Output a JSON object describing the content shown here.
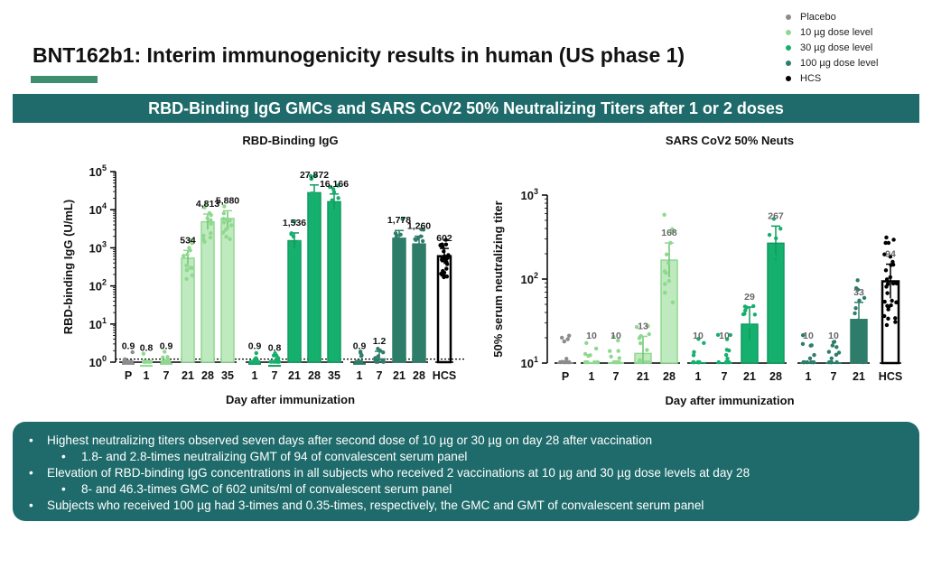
{
  "slide": {
    "title": "BNT162b1:  Interim immunogenicity results in human (US phase 1)",
    "banner": "RBD-Binding IgG GMCs and SARS CoV2 50% Neutralizing Titers after 1 or 2 doses"
  },
  "legend": [
    {
      "label": "Placebo",
      "color": "#8c8c8c"
    },
    {
      "label": "10 µg dose level",
      "color": "#8fd88f"
    },
    {
      "label": "30 µg dose level",
      "color": "#16b06e"
    },
    {
      "label": "100 µg dose level",
      "color": "#2e7d6a"
    },
    {
      "label": "HCS",
      "color": "#000000"
    }
  ],
  "chart_data": [
    {
      "type": "bar",
      "title": "RBD-Binding IgG",
      "ylabel": "RBD-binding IgG (U/mL)",
      "xlabel": "Day after immunization",
      "yscale": "log",
      "ylim": [
        1,
        100000
      ],
      "yticks": [
        {
          "base": "10",
          "exp": "0"
        },
        {
          "base": "10",
          "exp": "1"
        },
        {
          "base": "10",
          "exp": "2"
        },
        {
          "base": "10",
          "exp": "3"
        },
        {
          "base": "10",
          "exp": "4"
        },
        {
          "base": "10",
          "exp": "5"
        }
      ],
      "categories": [
        "P",
        "1",
        "7",
        "21",
        "28",
        "35",
        "1",
        "7",
        "21",
        "28",
        "35",
        "1",
        "7",
        "21",
        "28",
        "HCS"
      ],
      "groups": [
        "Placebo",
        "10 µg",
        "10 µg",
        "10 µg",
        "10 µg",
        "10 µg",
        "30 µg",
        "30 µg",
        "30 µg",
        "30 µg",
        "30 µg",
        "100 µg",
        "100 µg",
        "100 µg",
        "100 µg",
        "HCS"
      ],
      "values": [
        0.9,
        0.8,
        0.9,
        534,
        4813,
        5880,
        0.9,
        0.8,
        1536,
        27872,
        16166,
        0.9,
        1.2,
        1778,
        1260,
        602
      ],
      "labels": [
        "0.9",
        "0.8",
        "0.9",
        "534",
        "4,813",
        "5,880",
        "0.9",
        "0.8",
        "1,536",
        "27,872",
        "16,166",
        "0.9",
        "1.2",
        "1,778",
        "1,260",
        "602"
      ],
      "lloq": 1.2
    },
    {
      "type": "bar",
      "title": "SARS CoV2 50% Neuts",
      "ylabel": "50% serum neutralizing titer",
      "xlabel": "Day after immunization",
      "yscale": "log",
      "ylim": [
        10,
        1000
      ],
      "yticks": [
        {
          "base": "10",
          "exp": "1"
        },
        {
          "base": "10",
          "exp": "2"
        },
        {
          "base": "10",
          "exp": "3"
        }
      ],
      "categories": [
        "P",
        "1",
        "7",
        "21",
        "28",
        "1",
        "7",
        "21",
        "28",
        "1",
        "7",
        "21",
        "HCS"
      ],
      "groups": [
        "Placebo",
        "10 µg",
        "10 µg",
        "10 µg",
        "10 µg",
        "30 µg",
        "30 µg",
        "30 µg",
        "30 µg",
        "100 µg",
        "100 µg",
        "100 µg",
        "HCS"
      ],
      "values": [
        10,
        10,
        10,
        13,
        168,
        10,
        10,
        29,
        267,
        10,
        10,
        33,
        94
      ],
      "labels": [
        "",
        "10",
        "10",
        "13",
        "168",
        "10",
        "10",
        "29",
        "267",
        "10",
        "10",
        "33",
        "94"
      ]
    }
  ],
  "notes": [
    {
      "level": 1,
      "bullet": "•",
      "text": "Highest neutralizing titers observed seven days after second dose of 10 µg or 30 µg on day 28 after vaccination"
    },
    {
      "level": 2,
      "bullet": "•",
      "text": "1.8- and 2.8-times neutralizing GMT of 94 of convalescent serum panel"
    },
    {
      "level": 1,
      "bullet": "•",
      "text": "Elevation of RBD-binding IgG concentrations in all subjects who received 2 vaccinations at 10 µg and 30 µg dose levels at day 28"
    },
    {
      "level": 2,
      "bullet": "•",
      "text": "8- and 46.3-times GMC of 602 units/ml of convalescent serum panel"
    },
    {
      "level": 1,
      "bullet": "•",
      "text": "Subjects who received 100 µg had 3-times and 0.35-times, respectively, the GMC and GMT of convalescent serum panel"
    }
  ]
}
